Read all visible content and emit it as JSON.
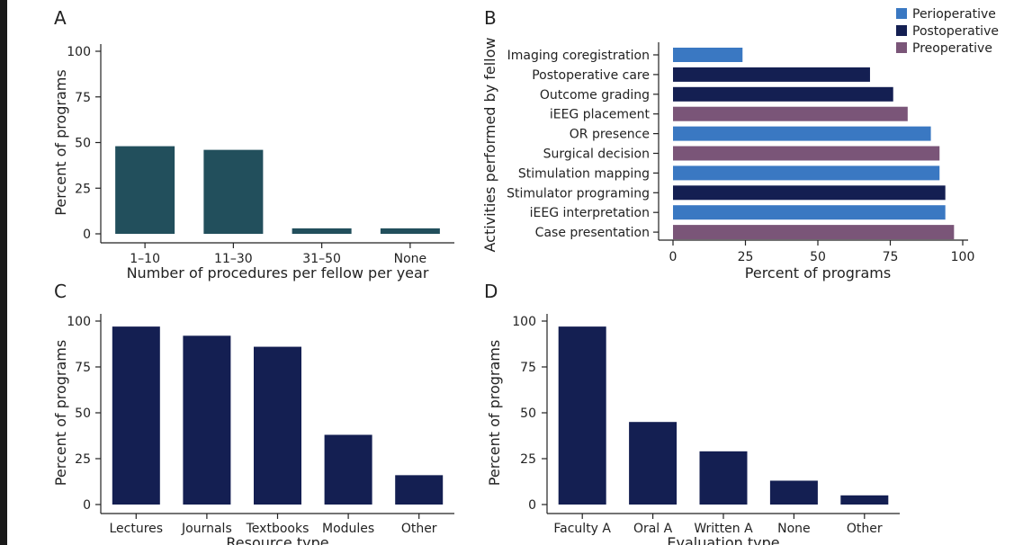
{
  "chart_data": [
    {
      "panel": "A",
      "type": "bar",
      "categories": [
        "1–10",
        "11–30",
        "31–50",
        "None"
      ],
      "values": [
        48,
        46,
        3,
        3
      ],
      "xlabel": "Number of procedures per fellow per year",
      "ylabel": "Percent of programs",
      "ylim": [
        0,
        100
      ],
      "yticks": [
        "0",
        "25",
        "50",
        "75",
        "100"
      ],
      "color": "#224f5c",
      "grid": false
    },
    {
      "panel": "B",
      "type": "bar",
      "orientation": "horizontal",
      "categories": [
        "Imaging coregistration",
        "Postoperative care",
        "Outcome grading",
        "iEEG placement",
        "OR presence",
        "Surgical decision",
        "Stimulation mapping",
        "Stimulator programing",
        "iEEG interpretation",
        "Case presentation"
      ],
      "values": [
        24,
        68,
        76,
        81,
        89,
        92,
        92,
        94,
        94,
        97
      ],
      "bar_series": [
        "Perioperative",
        "Postoperative",
        "Postoperative",
        "Preoperative",
        "Perioperative",
        "Preoperative",
        "Perioperative",
        "Postoperative",
        "Perioperative",
        "Preoperative"
      ],
      "legend": [
        {
          "name": "Perioperative",
          "color": "#3a78c2"
        },
        {
          "name": "Postoperative",
          "color": "#141f52"
        },
        {
          "name": "Preoperative",
          "color": "#7a5578"
        }
      ],
      "legend_position": "top-right",
      "xlabel": "Percent of programs",
      "ylabel": "Activities performed by fellow",
      "xlim": [
        0,
        100
      ],
      "xticks": [
        "0",
        "25",
        "50",
        "75",
        "100"
      ],
      "grid": false
    },
    {
      "panel": "C",
      "type": "bar",
      "categories": [
        "Lectures",
        "Journals",
        "Textbooks",
        "Modules",
        "Other"
      ],
      "values": [
        97,
        92,
        86,
        38,
        16
      ],
      "xlabel": "Resource type",
      "ylabel": "Percent of programs",
      "ylim": [
        0,
        100
      ],
      "yticks": [
        "0",
        "25",
        "50",
        "75",
        "100"
      ],
      "color": "#141f52",
      "grid": false
    },
    {
      "panel": "D",
      "type": "bar",
      "categories": [
        "Faculty A",
        "Oral A",
        "Written A",
        "None",
        "Other"
      ],
      "values": [
        97,
        45,
        29,
        13,
        5
      ],
      "xlabel": "Evaluation type",
      "ylabel": "Percent of programs",
      "ylim": [
        0,
        100
      ],
      "yticks": [
        "0",
        "25",
        "50",
        "75",
        "100"
      ],
      "color": "#141f52",
      "grid": false
    }
  ]
}
